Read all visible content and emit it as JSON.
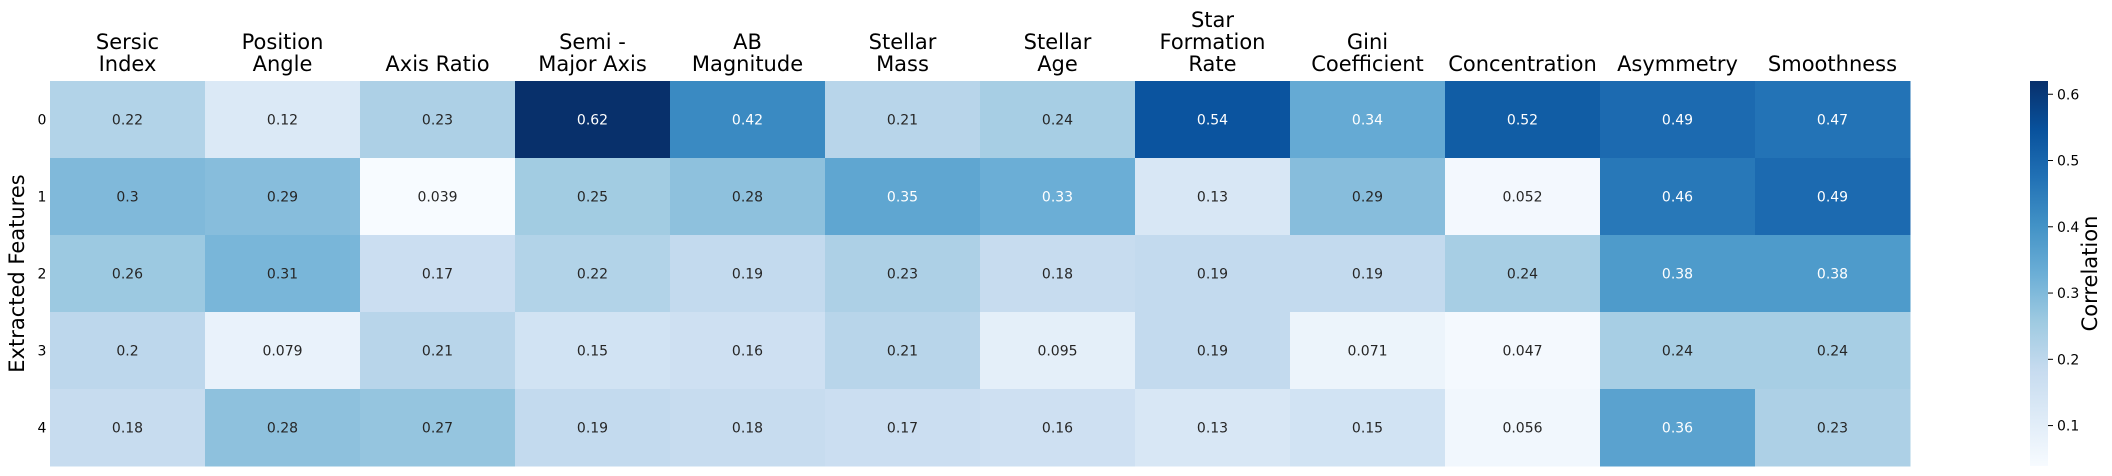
{
  "chart_data": {
    "type": "heatmap",
    "title": "",
    "xlabel": "",
    "ylabel": "Extracted Features",
    "columns": [
      [
        "Sersic",
        "Index"
      ],
      [
        "Position",
        "Angle"
      ],
      [
        "Axis Ratio"
      ],
      [
        "Semi -",
        "Major Axis"
      ],
      [
        "AB",
        "Magnitude"
      ],
      [
        "Stellar",
        "Mass"
      ],
      [
        "Stellar",
        "Age"
      ],
      [
        "Star",
        "Formation",
        "Rate"
      ],
      [
        "Gini",
        "Coefficient"
      ],
      [
        "Concentration"
      ],
      [
        "Asymmetry"
      ],
      [
        "Smoothness"
      ]
    ],
    "rows": [
      "0",
      "1",
      "2",
      "3",
      "4"
    ],
    "values": [
      [
        0.22,
        0.12,
        0.23,
        0.62,
        0.42,
        0.21,
        0.24,
        0.54,
        0.34,
        0.52,
        0.49,
        0.47
      ],
      [
        0.3,
        0.29,
        0.039,
        0.25,
        0.28,
        0.35,
        0.33,
        0.13,
        0.29,
        0.052,
        0.46,
        0.49
      ],
      [
        0.26,
        0.31,
        0.17,
        0.22,
        0.19,
        0.23,
        0.18,
        0.19,
        0.19,
        0.24,
        0.38,
        0.38
      ],
      [
        0.2,
        0.079,
        0.21,
        0.15,
        0.16,
        0.21,
        0.095,
        0.19,
        0.071,
        0.047,
        0.24,
        0.24
      ],
      [
        0.18,
        0.28,
        0.27,
        0.19,
        0.18,
        0.17,
        0.16,
        0.13,
        0.15,
        0.056,
        0.36,
        0.23
      ]
    ],
    "colorbar": {
      "label": "Correlation",
      "range": [
        0.039,
        0.62
      ],
      "ticks": [
        0.1,
        0.2,
        0.3,
        0.4,
        0.5,
        0.6
      ],
      "colormap": "Blues"
    },
    "grid": false,
    "legend": "colorbar-right"
  }
}
